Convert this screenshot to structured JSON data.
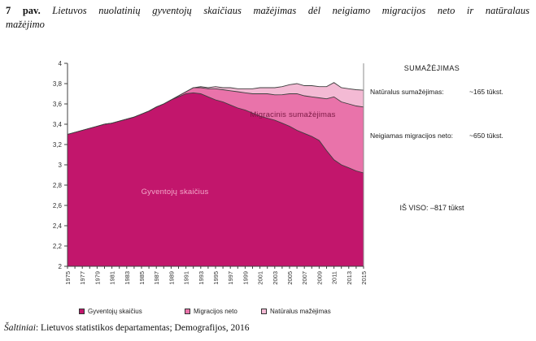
{
  "figure": {
    "caption_prefix": "7 pav.",
    "caption_line1": "Lietuvos nuolatinių gyventojų skaičiaus mažėjimas dėl neigiamo migracijos neto ir natūralaus",
    "caption_line2": "mažėjimo",
    "source_prefix": "Šaltiniai",
    "source_rest": ": Lietuvos statistikos departamentas; Demografijos, 2016"
  },
  "annotations": {
    "heading": "SUMAŽĖJIMAS",
    "natural_label": "Natūralus sumažėjimas:",
    "natural_value": "~165 tūkst.",
    "migration_label": "Neigiamas migracijos neto:",
    "migration_value": "~650 tūkst.",
    "total": "IŠ VISO: –817 tūkst",
    "area_label_population": "Gyventojų skaičius",
    "area_label_migration": "Migracinis sumažėjimas"
  },
  "chart_data": {
    "type": "area",
    "stacked": true,
    "title": "",
    "xlabel": "",
    "ylabel": "",
    "ylim": [
      2,
      4
    ],
    "y_tick_labels": [
      "4",
      "3,8",
      "3,6",
      "3,4",
      "3,2",
      "3",
      "2,8",
      "2,6",
      "2,4",
      "2,2",
      "2"
    ],
    "x_tick_labels": [
      "1975",
      "1977",
      "1979",
      "1981",
      "1983",
      "1985",
      "1987",
      "1989",
      "1991",
      "1993",
      "1995",
      "1997",
      "1999",
      "2001",
      "2003",
      "2005",
      "2007",
      "2009",
      "2011",
      "2013",
      "2015"
    ],
    "years": [
      1975,
      1976,
      1977,
      1978,
      1979,
      1980,
      1981,
      1982,
      1983,
      1984,
      1985,
      1986,
      1987,
      1988,
      1989,
      1990,
      1991,
      1992,
      1993,
      1994,
      1995,
      1996,
      1997,
      1998,
      1999,
      2000,
      2001,
      2002,
      2003,
      2004,
      2005,
      2006,
      2007,
      2008,
      2009,
      2010,
      2011,
      2012,
      2013,
      2014,
      2015
    ],
    "legend_position": "bottom",
    "grid": false,
    "series": [
      {
        "name": "Gyventojų skaičius",
        "color": "#C2166C",
        "values": [
          3.3,
          3.32,
          3.34,
          3.36,
          3.38,
          3.4,
          3.41,
          3.43,
          3.45,
          3.47,
          3.5,
          3.53,
          3.57,
          3.6,
          3.64,
          3.67,
          3.7,
          3.71,
          3.7,
          3.67,
          3.64,
          3.62,
          3.59,
          3.56,
          3.54,
          3.51,
          3.48,
          3.46,
          3.44,
          3.41,
          3.38,
          3.34,
          3.31,
          3.28,
          3.24,
          3.14,
          3.05,
          3.0,
          2.97,
          2.94,
          2.92
        ]
      },
      {
        "name": "Migracijos neto",
        "color": "#E973AA",
        "values": [
          0,
          0,
          0,
          0,
          0,
          0,
          0,
          0,
          0,
          0,
          0,
          0,
          0,
          0,
          0,
          0.01,
          0.02,
          0.05,
          0.06,
          0.08,
          0.11,
          0.12,
          0.14,
          0.16,
          0.17,
          0.19,
          0.22,
          0.24,
          0.25,
          0.28,
          0.32,
          0.36,
          0.37,
          0.39,
          0.42,
          0.51,
          0.62,
          0.62,
          0.63,
          0.64,
          0.65
        ]
      },
      {
        "name": "Natūralus mažėjimas",
        "color": "#F3BAD4",
        "values": [
          0,
          0,
          0,
          0,
          0,
          0,
          0,
          0,
          0,
          0,
          0,
          0,
          0,
          0,
          0,
          0,
          0,
          0,
          0.01,
          0.01,
          0.02,
          0.02,
          0.03,
          0.03,
          0.04,
          0.05,
          0.06,
          0.06,
          0.07,
          0.08,
          0.09,
          0.1,
          0.1,
          0.11,
          0.11,
          0.12,
          0.14,
          0.14,
          0.15,
          0.16,
          0.165
        ]
      }
    ]
  }
}
